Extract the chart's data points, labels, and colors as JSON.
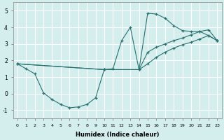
{
  "xlabel": "Humidex (Indice chaleur)",
  "bg_color": "#d4eeee",
  "line_color": "#2a7070",
  "grid_color": "#ffffff",
  "xlim": [
    -0.5,
    23.5
  ],
  "ylim": [
    -1.5,
    5.5
  ],
  "xticks": [
    0,
    1,
    2,
    3,
    4,
    5,
    6,
    7,
    8,
    9,
    10,
    11,
    12,
    13,
    14,
    15,
    16,
    17,
    18,
    19,
    20,
    21,
    22,
    23
  ],
  "yticks": [
    -1,
    0,
    1,
    2,
    3,
    4,
    5
  ],
  "line1_x": [
    0,
    1,
    2,
    3,
    4,
    5,
    6,
    7,
    8,
    9,
    10,
    11,
    12,
    13,
    14,
    15,
    16,
    17,
    18,
    19,
    20,
    21,
    22,
    23
  ],
  "line1_y": [
    1.8,
    1.5,
    1.2,
    0.05,
    -0.35,
    -0.65,
    -0.85,
    -0.8,
    -0.65,
    -0.25,
    1.45,
    1.5,
    3.2,
    4.0,
    1.45,
    4.85,
    4.8,
    4.55,
    4.1,
    3.8,
    3.75,
    3.75,
    3.5,
    3.2
  ],
  "line2_x": [
    0,
    10,
    14,
    15,
    16,
    17,
    18,
    19,
    20,
    21,
    22,
    23
  ],
  "line2_y": [
    1.8,
    1.45,
    1.45,
    2.5,
    2.8,
    3.0,
    3.2,
    3.35,
    3.55,
    3.75,
    3.85,
    3.2
  ],
  "line3_x": [
    0,
    10,
    14,
    15,
    16,
    17,
    18,
    19,
    20,
    21,
    22,
    23
  ],
  "line3_y": [
    1.8,
    1.45,
    1.45,
    1.8,
    2.2,
    2.5,
    2.75,
    2.95,
    3.1,
    3.3,
    3.5,
    3.2
  ]
}
